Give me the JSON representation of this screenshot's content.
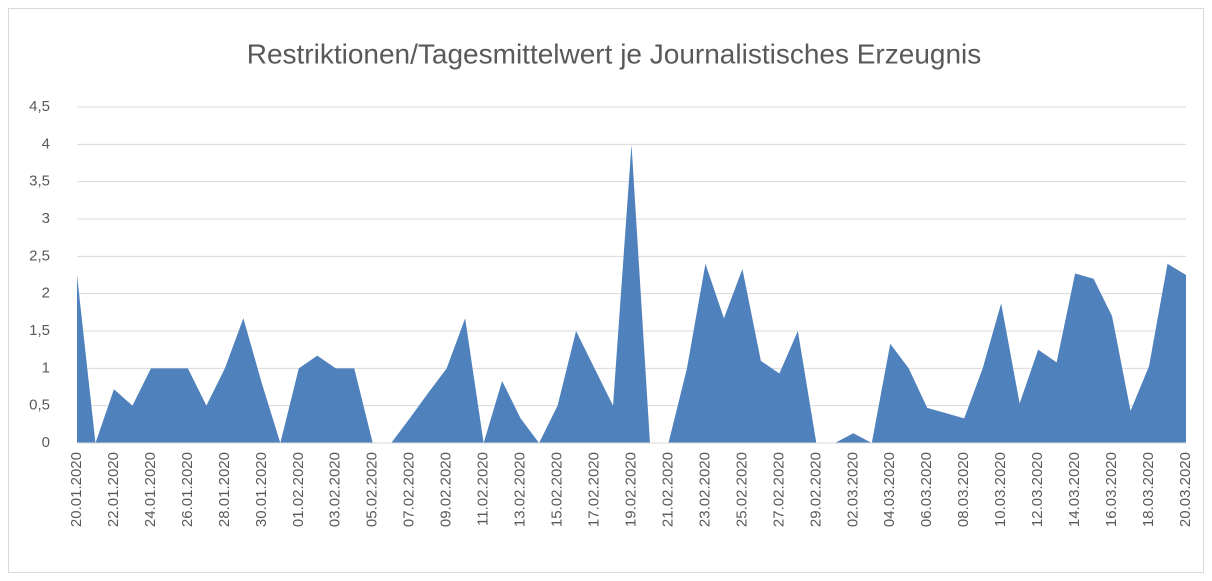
{
  "chart_data": {
    "type": "area",
    "title": "Restriktionen/Tagesmittelwert je Journalistisches Erzeugnis",
    "categories": [
      "20.01.2020",
      null,
      "22.01.2020",
      null,
      "24.01.2020",
      null,
      "26.01.2020",
      null,
      "28.01.2020",
      null,
      "30.01.2020",
      null,
      "01.02.2020",
      null,
      "03.02.2020",
      null,
      "05.02.2020",
      null,
      "07.02.2020",
      null,
      "09.02.2020",
      null,
      "11.02.2020",
      null,
      "13.02.2020",
      null,
      "15.02.2020",
      null,
      "17.02.2020",
      null,
      "19.02.2020",
      null,
      "21.02.2020",
      null,
      "23.02.2020",
      null,
      "25.02.2020",
      null,
      "27.02.2020",
      null,
      "29.02.2020",
      null,
      "02.03.2020",
      null,
      "04.03.2020",
      null,
      "06.03.2020",
      null,
      "08.03.2020",
      null,
      "10.03.2020",
      null,
      "12.03.2020",
      null,
      "14.03.2020",
      null,
      "16.03.2020",
      null,
      "18.03.2020",
      null,
      "20.03.2020"
    ],
    "values": [
      2.25,
      0,
      0.72,
      0.5,
      1,
      1,
      1,
      0.5,
      1,
      1.67,
      0.8,
      0,
      1,
      1.17,
      1,
      1,
      0,
      0,
      0.33,
      0.67,
      1,
      1.67,
      0,
      0.83,
      0.33,
      0,
      0.5,
      1.5,
      1,
      0.5,
      4,
      0,
      0,
      1,
      2.4,
      1.67,
      2.33,
      1.1,
      0.93,
      1.5,
      0,
      0,
      0.13,
      0,
      1.33,
      1,
      0.47,
      0.4,
      0.33,
      1,
      1.87,
      0.53,
      1.25,
      1.08,
      2.27,
      2.2,
      1.7,
      0.43,
      1.03,
      2.4,
      2.25
    ],
    "color": "#4f81bd",
    "ylim": [
      0,
      4.5
    ],
    "yticks": [
      0,
      {
        "value": 0.5,
        "label": "0,5"
      },
      1,
      {
        "value": 1.5,
        "label": "1,5"
      },
      2,
      {
        "value": 2.5,
        "label": "2,5"
      },
      3,
      {
        "value": 3.5,
        "label": "3,5"
      },
      4,
      {
        "value": 4.5,
        "label": "4,5"
      }
    ],
    "grid": true
  }
}
